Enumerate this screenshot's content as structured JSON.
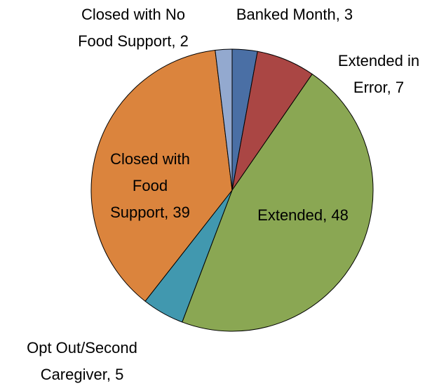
{
  "chart_data": {
    "type": "pie",
    "values": [
      3,
      7,
      48,
      5,
      39,
      2
    ],
    "value_labels": [
      "Banked Month, 3",
      "Extended in Error, 7",
      "Extended, 48",
      "Opt Out/Second Caregiver, 5",
      "Closed with Food Support, 39",
      "Closed with No Food Support, 2"
    ],
    "colors": [
      "#4a6fa5",
      "#aa4644",
      "#8aa753",
      "#4198af",
      "#db843d",
      "#93a9cf"
    ]
  }
}
